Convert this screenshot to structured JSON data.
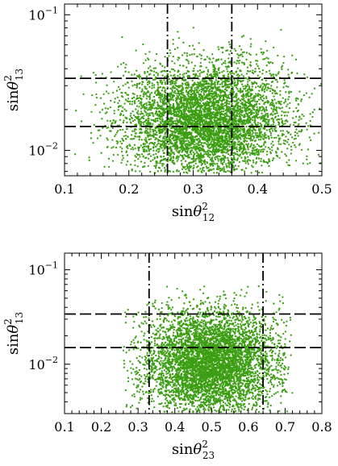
{
  "chart_data": [
    {
      "type": "scatter",
      "title": "",
      "xlabel": {
        "base": "sin",
        "var": "θ",
        "sup": "2",
        "sub": "12"
      },
      "ylabel": {
        "base": "sin",
        "var": "θ",
        "sup": "2",
        "sub": "13"
      },
      "xlim": [
        0.1,
        0.5
      ],
      "ylim": [
        0.0065,
        0.12
      ],
      "yscale": "log",
      "x_ticks": [
        {
          "value": 0.1,
          "label": "0.1"
        },
        {
          "value": 0.2,
          "label": "0.2"
        },
        {
          "value": 0.3,
          "label": "0.3"
        },
        {
          "value": 0.4,
          "label": "0.4"
        },
        {
          "value": 0.5,
          "label": "0.5"
        }
      ],
      "y_ticks": [
        {
          "value": 0.01,
          "label_base": "10",
          "label_exp": "−2"
        },
        {
          "value": 0.1,
          "label_base": "10",
          "label_exp": "−1"
        }
      ],
      "point_color": "#3c9e12",
      "point_count": 5200,
      "distribution": {
        "x_center": 0.32,
        "x_spread": 0.065,
        "x_range": [
          0.115,
          0.5
        ],
        "log10_y_center": -1.78,
        "log10_y_spread": 0.21,
        "y_range": [
          0.0068,
          0.1
        ]
      },
      "reference_lines": {
        "vertical_dashdot": [
          0.26,
          0.36
        ],
        "horizontal_dashed": [
          0.015,
          0.034
        ]
      },
      "grid": false,
      "legend": "none"
    },
    {
      "type": "scatter",
      "title": "",
      "xlabel": {
        "base": "sin",
        "var": "θ",
        "sup": "2",
        "sub": "23"
      },
      "ylabel": {
        "base": "sin",
        "var": "θ",
        "sup": "2",
        "sub": "13"
      },
      "xlim": [
        0.1,
        0.8
      ],
      "ylim": [
        0.003,
        0.15
      ],
      "yscale": "log",
      "x_ticks": [
        {
          "value": 0.1,
          "label": "0.1"
        },
        {
          "value": 0.2,
          "label": "0.2"
        },
        {
          "value": 0.3,
          "label": "0.3"
        },
        {
          "value": 0.4,
          "label": "0.4"
        },
        {
          "value": 0.5,
          "label": "0.5"
        },
        {
          "value": 0.6,
          "label": "0.6"
        },
        {
          "value": 0.7,
          "label": "0.7"
        },
        {
          "value": 0.8,
          "label": "0.8"
        }
      ],
      "y_ticks": [
        {
          "value": 0.01,
          "label_base": "10",
          "label_exp": "−2"
        },
        {
          "value": 0.1,
          "label_base": "10",
          "label_exp": "−1"
        }
      ],
      "point_color": "#3c9e12",
      "point_count": 5200,
      "distribution": {
        "x_center": 0.5,
        "x_spread": 0.09,
        "x_range": [
          0.26,
          0.72
        ],
        "log10_y_center": -1.98,
        "log10_y_spread": 0.28,
        "y_range": [
          0.0031,
          0.07
        ]
      },
      "reference_lines": {
        "vertical_dashdot": [
          0.33,
          0.64
        ],
        "horizontal_dashed": [
          0.015,
          0.034
        ]
      },
      "grid": false,
      "legend": "none"
    }
  ]
}
